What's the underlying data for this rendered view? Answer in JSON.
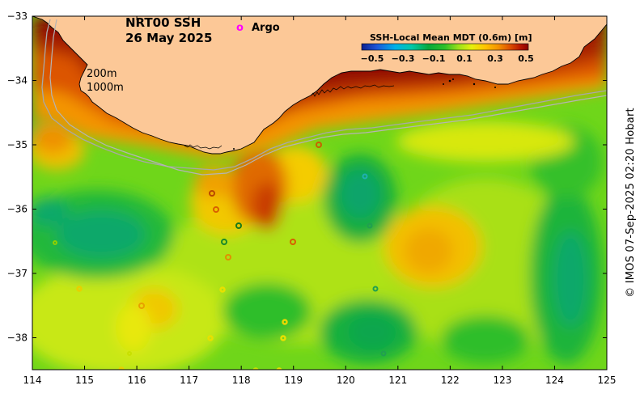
{
  "header": {
    "product": "NRT00 SSH",
    "date": "26 May 2025",
    "argo_symbol": "o",
    "argo_label": "Argo"
  },
  "colorbar": {
    "title": "SSH-Local Mean MDT (0.6m) [m]",
    "ticks": [
      "−0.5",
      "−0.3",
      "−0.1",
      "0.1",
      "0.3",
      "0.5"
    ],
    "colors": [
      "#0b1f8f",
      "#1d55d8",
      "#00b0e8",
      "#00c8a8",
      "#06a83c",
      "#2fc028",
      "#9ae01a",
      "#e6ef0c",
      "#ffc400",
      "#f39200",
      "#dd5000",
      "#b81800",
      "#8b0000"
    ]
  },
  "isobaths": {
    "label_200": "200m",
    "label_1000": "1000m"
  },
  "axes": {
    "x_ticks": [
      "114",
      "115",
      "116",
      "117",
      "118",
      "119",
      "120",
      "121",
      "122",
      "123",
      "124",
      "125"
    ],
    "y_ticks": [
      "−33",
      "−34",
      "−35",
      "−36",
      "−37",
      "−38"
    ]
  },
  "credit": "© IMOS 07-Sep-2025 02:20 Hobart",
  "style": {
    "land_color": "#fcc897",
    "coast_color": "#000000",
    "isobath_color": "#a8a8a8",
    "argo_color": "#ff00ff"
  }
}
